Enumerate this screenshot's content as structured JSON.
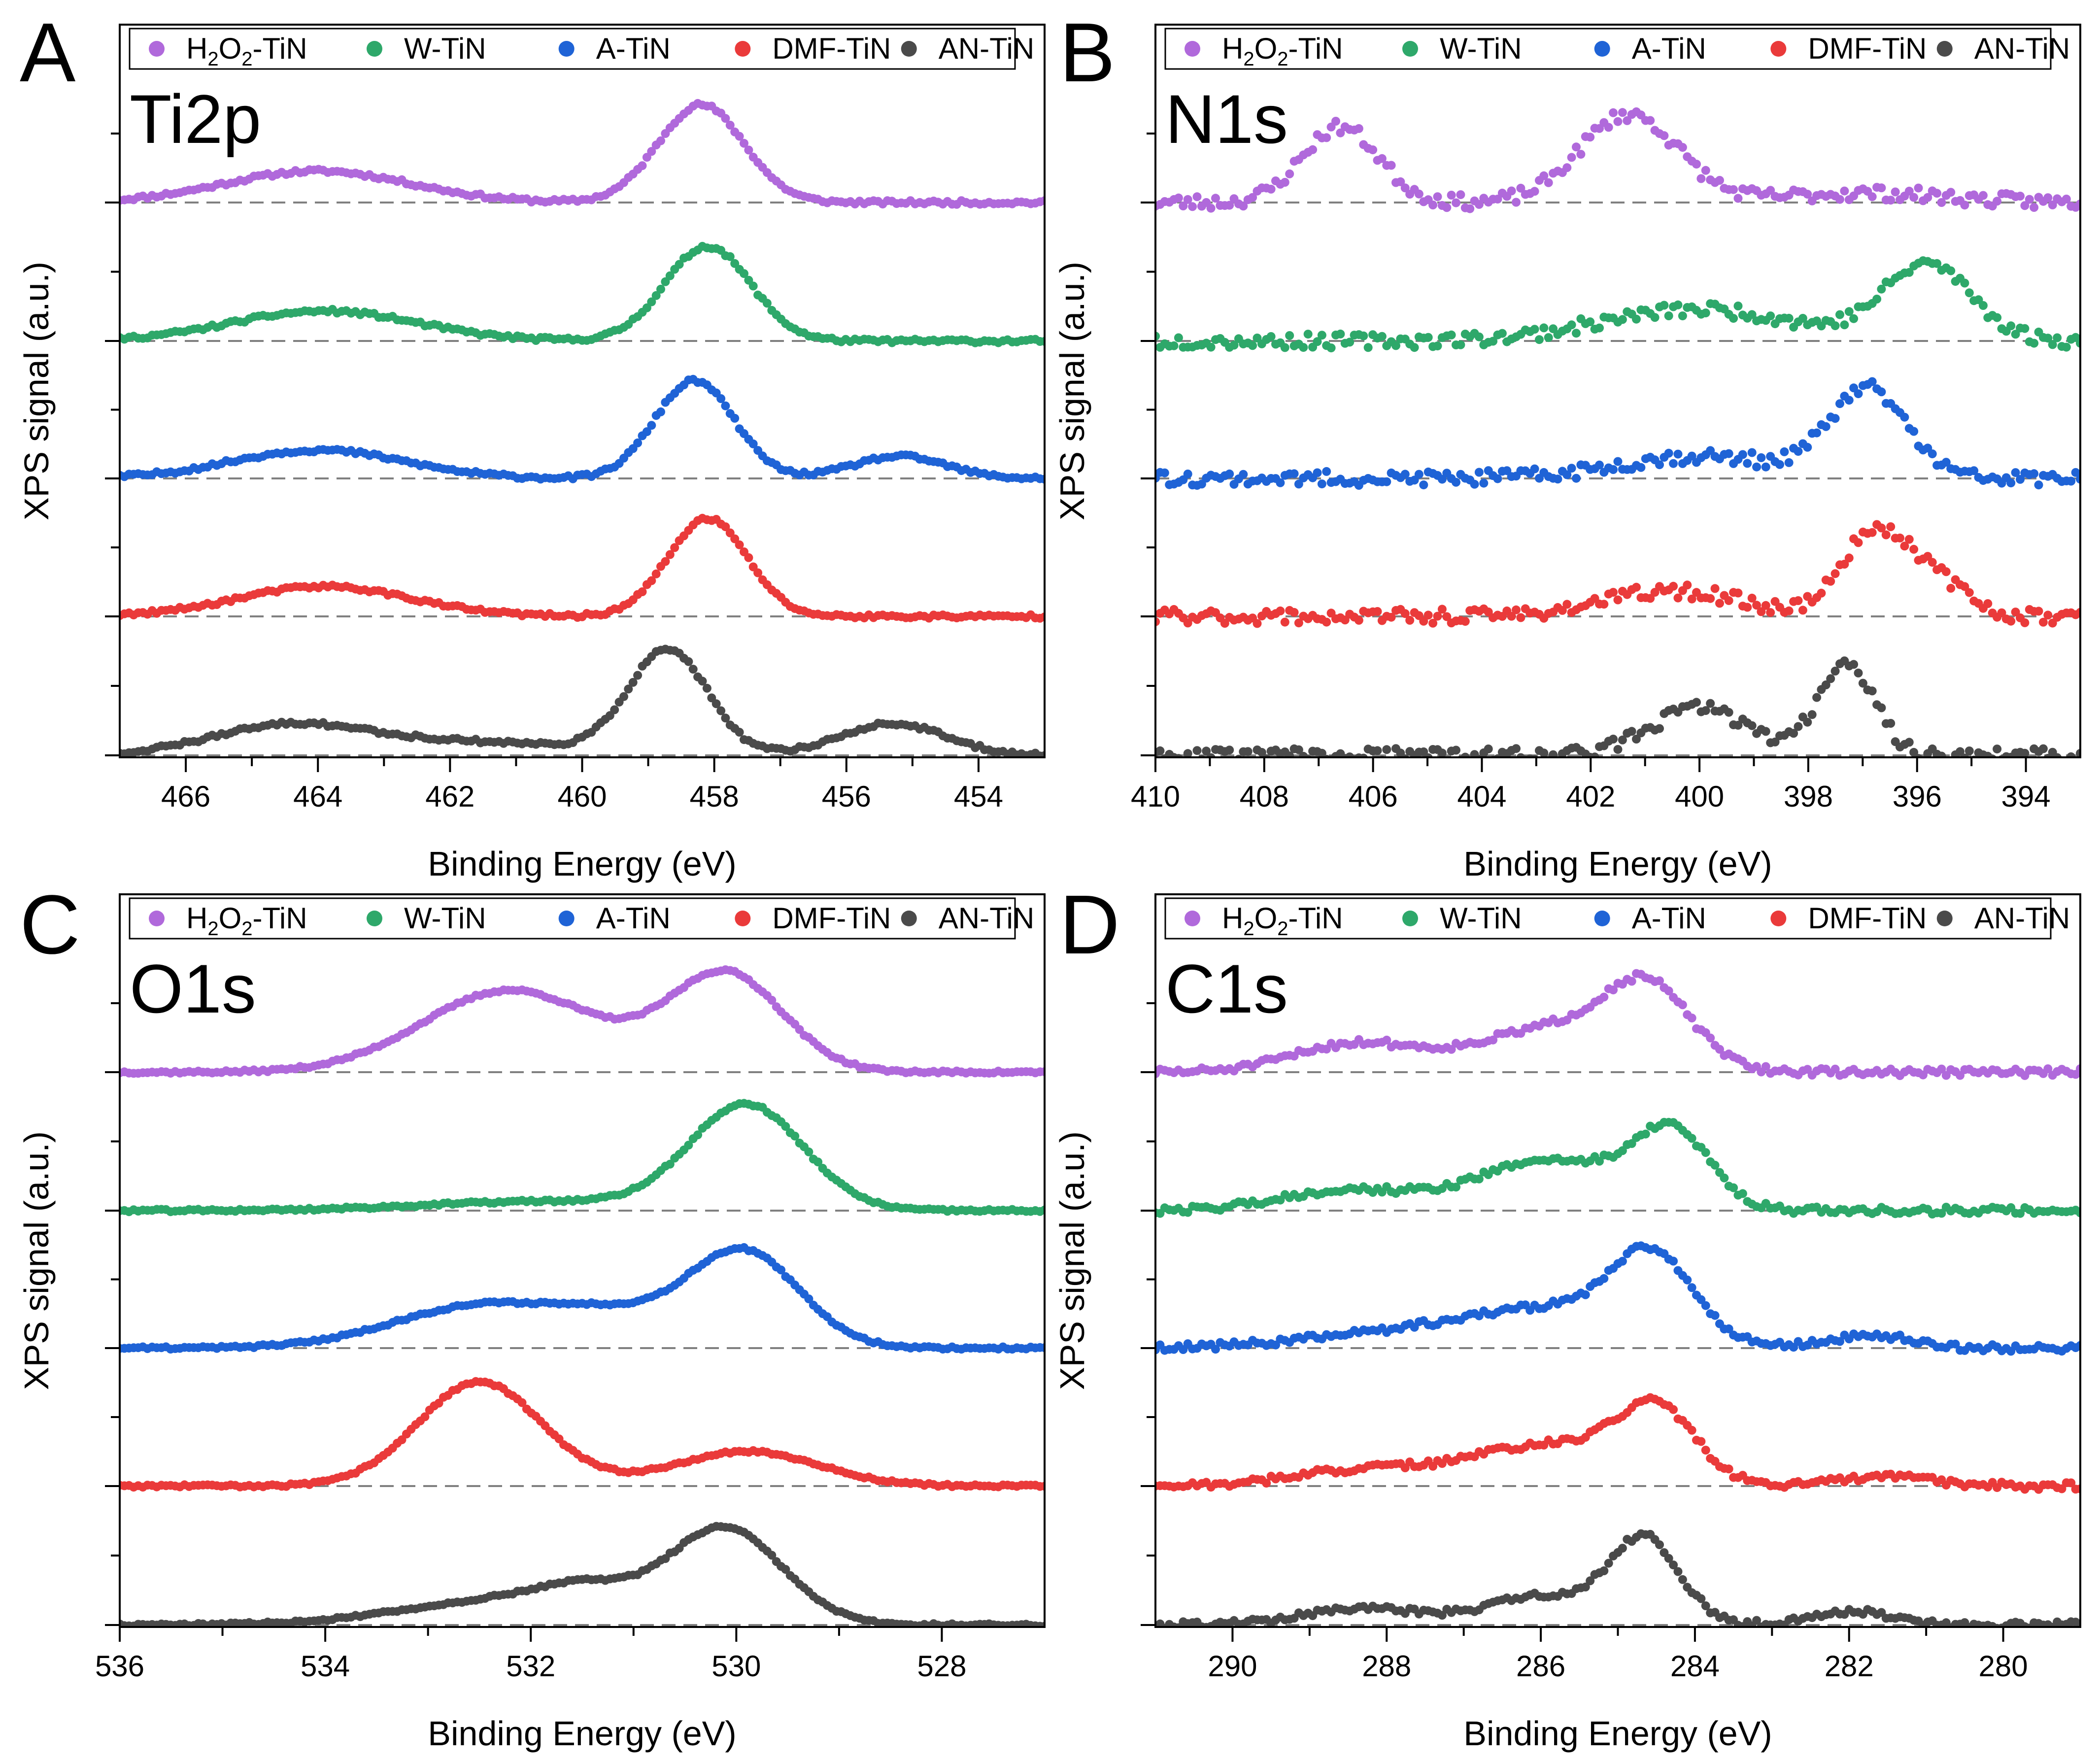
{
  "legend": {
    "items": [
      {
        "label": "H2O2-TiN",
        "prefix": "H",
        "sub1": "2",
        "mid": "O",
        "sub2": "2",
        "suffix": "-TiN",
        "color": "#b069db"
      },
      {
        "label": "W-TiN",
        "color": "#2ea86a"
      },
      {
        "label": "A-TiN",
        "color": "#1f63d6"
      },
      {
        "label": "DMF-TiN",
        "color": "#ea3a3a"
      },
      {
        "label": "AN-TiN",
        "color": "#4a4a4a"
      }
    ]
  },
  "axis_labels": {
    "x": "Binding Energy (eV)",
    "y": "XPS signal (a.u.)"
  },
  "chart_data": [
    {
      "type": "scatter",
      "panel_letter": "A",
      "title": "Ti2p",
      "xlabel": "Binding Energy (eV)",
      "ylabel": "XPS signal (a.u.)",
      "xlim": [
        467,
        453
      ],
      "xticks": [
        466,
        464,
        462,
        460,
        458,
        456,
        454
      ],
      "seed": 11,
      "noise": 0.012,
      "series": [
        {
          "name": "H2O2-TiN",
          "color": "#b069db",
          "baseline": 0,
          "peaks": [
            [
              464.0,
              0.2,
              1.4
            ],
            [
              458.2,
              0.62,
              0.65
            ]
          ]
        },
        {
          "name": "W-TiN",
          "color": "#2ea86a",
          "baseline": 0,
          "peaks": [
            [
              463.9,
              0.19,
              1.4
            ],
            [
              458.1,
              0.6,
              0.65
            ]
          ]
        },
        {
          "name": "A-TiN",
          "color": "#1f63d6",
          "baseline": 0,
          "peaks": [
            [
              464.0,
              0.18,
              1.3
            ],
            [
              458.3,
              0.62,
              0.6
            ],
            [
              455.2,
              0.14,
              0.7
            ]
          ]
        },
        {
          "name": "DMF-TiN",
          "color": "#ea3a3a",
          "baseline": 0,
          "peaks": [
            [
              463.9,
              0.19,
              1.3
            ],
            [
              458.1,
              0.62,
              0.6
            ]
          ]
        },
        {
          "name": "AN-TiN",
          "color": "#4a4a4a",
          "baseline": 0,
          "peaks": [
            [
              464.4,
              0.19,
              1.2
            ],
            [
              458.7,
              0.66,
              0.6
            ],
            [
              455.3,
              0.2,
              0.8
            ],
            [
              461.5,
              0.08,
              1.5
            ]
          ]
        }
      ]
    },
    {
      "type": "scatter",
      "panel_letter": "B",
      "title": "N1s",
      "xlabel": "Binding Energy (eV)",
      "ylabel": "XPS signal (a.u.)",
      "xlim": [
        410,
        393
      ],
      "xticks": [
        410,
        408,
        406,
        404,
        402,
        400,
        398,
        396,
        394
      ],
      "seed": 23,
      "noise": 0.045,
      "series": [
        {
          "name": "H2O2-TiN",
          "color": "#b069db",
          "baseline": 0,
          "peaks": [
            [
              406.6,
              0.48,
              0.7
            ],
            [
              401.3,
              0.56,
              0.9
            ],
            [
              397.0,
              0.06,
              1.5
            ]
          ]
        },
        {
          "name": "W-TiN",
          "color": "#2ea86a",
          "baseline": 0,
          "peaks": [
            [
              400.0,
              0.2,
              1.8
            ],
            [
              395.8,
              0.48,
              0.8
            ]
          ]
        },
        {
          "name": "A-TiN",
          "color": "#1f63d6",
          "baseline": 0,
          "peaks": [
            [
              400.0,
              0.14,
              1.5
            ],
            [
              396.9,
              0.56,
              0.7
            ]
          ]
        },
        {
          "name": "DMF-TiN",
          "color": "#ea3a3a",
          "baseline": 0,
          "peaks": [
            [
              400.5,
              0.16,
              1.3
            ],
            [
              396.8,
              0.52,
              0.6
            ],
            [
              395.7,
              0.22,
              0.6
            ]
          ]
        },
        {
          "name": "AN-TiN",
          "color": "#4a4a4a",
          "baseline": 0,
          "peaks": [
            [
              400.0,
              0.3,
              0.9
            ],
            [
              397.3,
              0.6,
              0.5
            ]
          ]
        }
      ]
    },
    {
      "type": "scatter",
      "panel_letter": "C",
      "title": "O1s",
      "xlabel": "Binding Energy (eV)",
      "ylabel": "XPS signal (a.u.)",
      "xlim": [
        536,
        527
      ],
      "xticks": [
        536,
        534,
        532,
        530,
        528
      ],
      "seed": 37,
      "noise": 0.008,
      "series": [
        {
          "name": "H2O2-TiN",
          "color": "#b069db",
          "baseline": 0,
          "peaks": [
            [
              532.2,
              0.52,
              0.85
            ],
            [
              530.1,
              0.62,
              0.55
            ]
          ]
        },
        {
          "name": "W-TiN",
          "color": "#2ea86a",
          "baseline": 0,
          "peaks": [
            [
              531.8,
              0.06,
              1.2
            ],
            [
              529.9,
              0.66,
              0.55
            ]
          ]
        },
        {
          "name": "A-TiN",
          "color": "#1f63d6",
          "baseline": 0,
          "peaks": [
            [
              532.4,
              0.28,
              0.9
            ],
            [
              531.2,
              0.12,
              0.5
            ],
            [
              529.95,
              0.62,
              0.55
            ]
          ]
        },
        {
          "name": "DMF-TiN",
          "color": "#ea3a3a",
          "baseline": 0,
          "peaks": [
            [
              532.5,
              0.66,
              0.6
            ],
            [
              529.9,
              0.22,
              0.7
            ]
          ]
        },
        {
          "name": "AN-TiN",
          "color": "#4a4a4a",
          "baseline": 0,
          "peaks": [
            [
              532.0,
              0.18,
              1.1
            ],
            [
              531.5,
              0.1,
              0.4
            ],
            [
              530.1,
              0.58,
              0.55
            ]
          ]
        }
      ]
    },
    {
      "type": "scatter",
      "panel_letter": "D",
      "title": "C1s",
      "xlabel": "Binding Energy (eV)",
      "ylabel": "XPS signal (a.u.)",
      "xlim": [
        291,
        279
      ],
      "xticks": [
        290,
        288,
        286,
        284,
        282,
        280
      ],
      "seed": 51,
      "noise": 0.022,
      "series": [
        {
          "name": "H2O2-TiN",
          "color": "#b069db",
          "baseline": 0,
          "peaks": [
            [
              288.4,
              0.18,
              0.8
            ],
            [
              285.8,
              0.28,
              1.0
            ],
            [
              284.6,
              0.46,
              0.55
            ]
          ]
        },
        {
          "name": "W-TiN",
          "color": "#2ea86a",
          "baseline": 0,
          "peaks": [
            [
              288.5,
              0.13,
              0.9
            ],
            [
              285.9,
              0.32,
              0.9
            ],
            [
              284.3,
              0.48,
              0.5
            ]
          ]
        },
        {
          "name": "A-TiN",
          "color": "#1f63d6",
          "baseline": 0,
          "peaks": [
            [
              288.0,
              0.08,
              1.2
            ],
            [
              285.7,
              0.25,
              1.2
            ],
            [
              284.55,
              0.48,
              0.5
            ],
            [
              281.7,
              0.08,
              0.5
            ]
          ]
        },
        {
          "name": "DMF-TiN",
          "color": "#ea3a3a",
          "baseline": 0,
          "peaks": [
            [
              288.3,
              0.1,
              0.9
            ],
            [
              285.9,
              0.26,
              1.0
            ],
            [
              284.5,
              0.44,
              0.5
            ],
            [
              281.5,
              0.06,
              0.6
            ]
          ]
        },
        {
          "name": "AN-TiN",
          "color": "#4a4a4a",
          "baseline": 0,
          "peaks": [
            [
              288.3,
              0.1,
              0.8
            ],
            [
              286.0,
              0.18,
              0.7
            ],
            [
              284.65,
              0.54,
              0.45
            ],
            [
              282.0,
              0.09,
              0.5
            ]
          ]
        }
      ]
    }
  ]
}
